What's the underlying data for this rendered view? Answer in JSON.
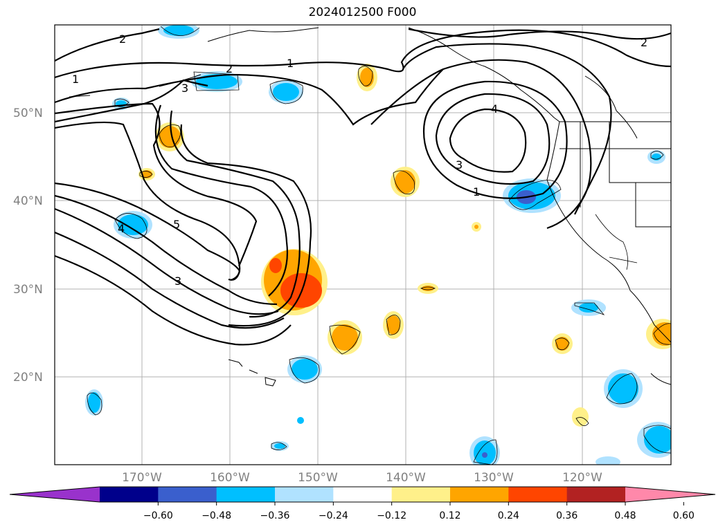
{
  "title": "2024012500 F000",
  "latitude_labels": [
    "50°N",
    "40°N",
    "30°N",
    "20°N"
  ],
  "longitude_labels": [
    "170°W",
    "160°W",
    "150°W",
    "140°W",
    "130°W",
    "120°W"
  ],
  "contour_labels": [
    "2",
    "1",
    "2",
    "3",
    "4",
    "5",
    "3",
    "4",
    "3",
    "1",
    "2",
    "1"
  ],
  "colorbar": {
    "ticks": [
      "−0.60",
      "−0.48",
      "−0.36",
      "−0.24",
      "−0.12",
      "0.12",
      "0.24",
      "0.36",
      "0.48",
      "0.60"
    ],
    "colors": [
      "#9932cc",
      "#00008b",
      "#3a5fcd",
      "#00bfff",
      "#b0e2ff",
      "#ffffff",
      "#fff08a",
      "#ffa500",
      "#ff4500",
      "#b22222",
      "#ff88aa"
    ]
  }
}
